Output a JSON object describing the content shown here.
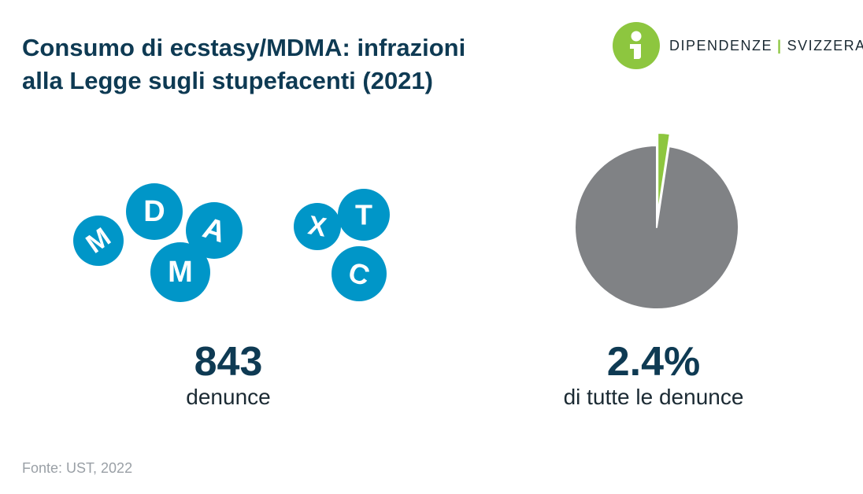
{
  "title": {
    "line1": "Consumo di ecstasy/MDMA: infrazioni",
    "line2": "alla Legge sugli stupefacenti (2021)"
  },
  "logo": {
    "left": "DIPENDENZE",
    "separator": "|",
    "right": "SVIZZERA",
    "icon": "info-person-icon",
    "color": "#8dc63f"
  },
  "pills": {
    "color": "#0096c8",
    "letters": [
      "M",
      "D",
      "A",
      "M",
      "X",
      "T",
      "C"
    ]
  },
  "stat_left": {
    "value": "843",
    "label": "denunce"
  },
  "stat_right": {
    "value": "2.4%",
    "label": "di tutte le denunce"
  },
  "source": "Fonte: UST, 2022",
  "chart_data": {
    "type": "pie",
    "slices": [
      {
        "value": 2.4,
        "color": "#8dc63f",
        "exploded": true
      },
      {
        "value": 97.6,
        "color": "#808285"
      }
    ]
  }
}
